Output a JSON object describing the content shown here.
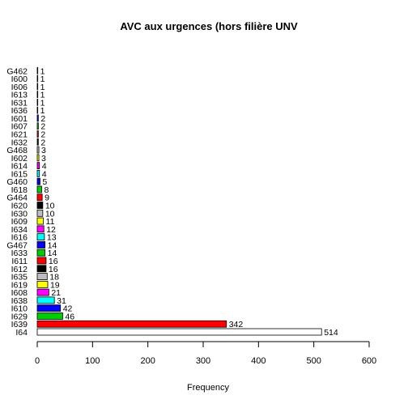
{
  "chart_data": {
    "type": "bar",
    "orientation": "horizontal",
    "title": "AVC aux urgences (hors filière UNV",
    "xlabel": "Frequency",
    "ylabel": "",
    "xlim": [
      0,
      600
    ],
    "xticks": [
      0,
      100,
      200,
      300,
      400,
      500,
      600
    ],
    "grid": false,
    "categories": [
      "I64",
      "I639",
      "I629",
      "I610",
      "I638",
      "I608",
      "I619",
      "I635",
      "I612",
      "I611",
      "I633",
      "G467",
      "I616",
      "I634",
      "I609",
      "I630",
      "I620",
      "G464",
      "I618",
      "G460",
      "I615",
      "I614",
      "I602",
      "G468",
      "I632",
      "I621",
      "I607",
      "I601",
      "I636",
      "I631",
      "I613",
      "I606",
      "I600",
      "G462"
    ],
    "values": [
      514,
      342,
      46,
      42,
      31,
      21,
      19,
      18,
      16,
      16,
      14,
      14,
      13,
      12,
      11,
      10,
      10,
      9,
      8,
      5,
      4,
      4,
      3,
      3,
      2,
      2,
      2,
      2,
      1,
      1,
      1,
      1,
      1,
      1
    ],
    "bar_colors": [
      "#ffffff",
      "#ff0000",
      "#00cd00",
      "#0000ff",
      "#00ffff",
      "#ff00ff",
      "#ffff00",
      "#bebebe",
      "#000000",
      "#ff0000",
      "#00cd00",
      "#0000ff",
      "#00ffff",
      "#ff00ff",
      "#ffff00",
      "#bebebe",
      "#000000",
      "#ff0000",
      "#00cd00",
      "#0000ff",
      "#00ffff",
      "#ff00ff",
      "#ffff00",
      "#bebebe",
      "#000000",
      "#ff0000",
      "#00cd00",
      "#0000ff",
      "#00ffff",
      "#ff00ff",
      "#ffff00",
      "#bebebe",
      "#000000",
      "#ff0000"
    ],
    "data_labels": [
      "514",
      "342",
      "46",
      "42",
      "31",
      "21",
      "19",
      "18",
      "16",
      "16",
      "14",
      "14",
      "13",
      "12",
      "11",
      "10",
      "10",
      "9",
      "8",
      "5",
      "4",
      "4",
      "3",
      "3",
      "2",
      "2",
      "2",
      "2",
      "1",
      "1",
      "1",
      "1",
      "1",
      "1"
    ]
  }
}
